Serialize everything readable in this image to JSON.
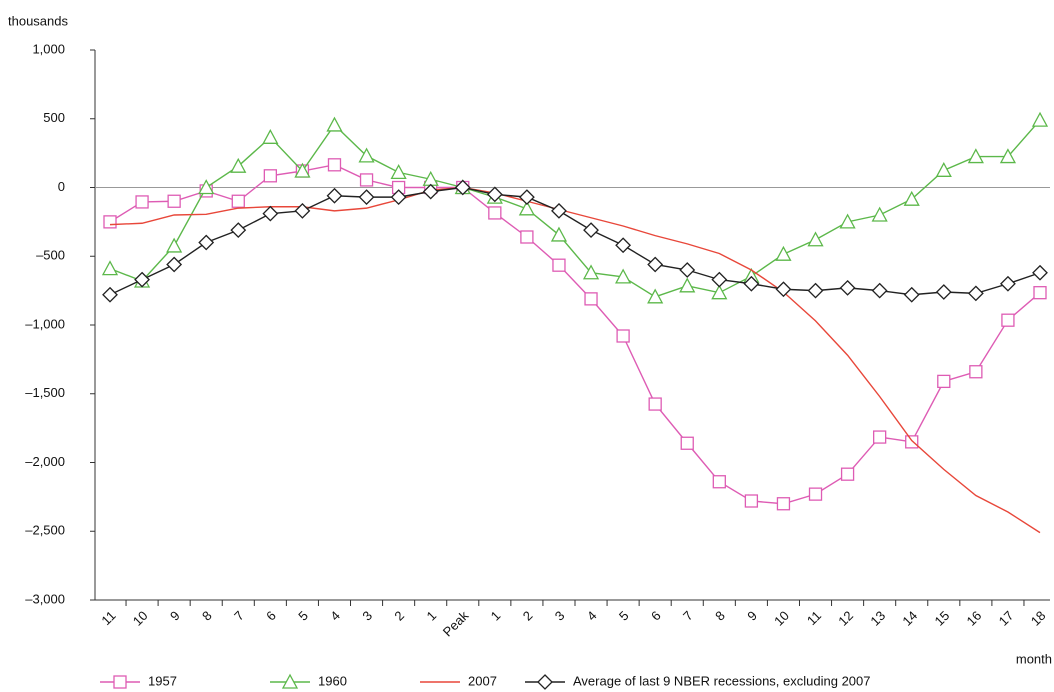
{
  "chart_data": {
    "type": "line",
    "y_label": "thousands",
    "x_label": "month",
    "categories": [
      "11",
      "10",
      "9",
      "8",
      "7",
      "6",
      "5",
      "4",
      "3",
      "2",
      "1",
      "Peak",
      "1",
      "2",
      "3",
      "4",
      "5",
      "6",
      "7",
      "8",
      "9",
      "10",
      "11",
      "12",
      "13",
      "14",
      "15",
      "16",
      "17",
      "18"
    ],
    "ylim": [
      -3000,
      1000
    ],
    "yticks": [
      {
        "value": -3000,
        "label": "–3,000"
      },
      {
        "value": -2500,
        "label": "–2,500"
      },
      {
        "value": -2000,
        "label": "–2,000"
      },
      {
        "value": -1500,
        "label": "–1,500"
      },
      {
        "value": -1000,
        "label": "–1,000"
      },
      {
        "value": -500,
        "label": "–500"
      },
      0,
      500,
      {
        "value": 1000,
        "label": "1,000"
      }
    ],
    "zero_line": true,
    "legend": "bottom",
    "series": [
      {
        "name": "1957",
        "color": "#de5cb4",
        "marker": "square",
        "values": [
          -250,
          -105,
          -100,
          -25,
          -100,
          85,
          120,
          165,
          55,
          0,
          0,
          0,
          -185,
          -360,
          -565,
          -810,
          -1080,
          -1575,
          -1860,
          -2140,
          -2280,
          -2300,
          -2230,
          -2085,
          -1815,
          -1850,
          -1410,
          -1340,
          -965,
          -765
        ]
      },
      {
        "name": "1960",
        "color": "#5cb84a",
        "marker": "triangle",
        "values": [
          -590,
          -680,
          -425,
          0,
          155,
          365,
          120,
          455,
          230,
          110,
          60,
          0,
          -70,
          -155,
          -345,
          -620,
          -650,
          -795,
          -715,
          -765,
          -645,
          -485,
          -380,
          -250,
          -200,
          -85,
          125,
          225,
          225,
          490
        ]
      },
      {
        "name": "2007",
        "color": "#e8473a",
        "marker": "none",
        "values": [
          -270,
          -260,
          -200,
          -195,
          -150,
          -140,
          -140,
          -170,
          -150,
          -90,
          -20,
          0,
          -40,
          -100,
          -160,
          -220,
          -280,
          -350,
          -410,
          -480,
          -600,
          -760,
          -970,
          -1220,
          -1520,
          -1840,
          -2050,
          -2240,
          -2360,
          -2510
        ]
      },
      {
        "name": "Average of last 9 NBER recessions, excluding 2007",
        "color": "#222222",
        "marker": "diamond",
        "values": [
          -780,
          -670,
          -560,
          -400,
          -310,
          -190,
          -170,
          -60,
          -70,
          -70,
          -30,
          0,
          -50,
          -70,
          -170,
          -310,
          -420,
          -560,
          -600,
          -670,
          -700,
          -740,
          -750,
          -730,
          -750,
          -780,
          -760,
          -770,
          -700,
          -620
        ]
      }
    ]
  }
}
